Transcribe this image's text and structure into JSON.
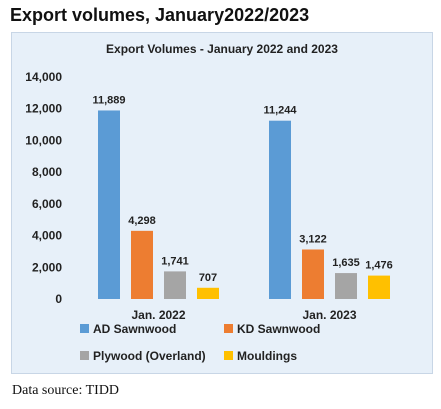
{
  "title": "Export volumes, January2022/2023",
  "source": "Data source: TIDD",
  "chart_data": {
    "type": "bar",
    "title": "Export Volumes  - January 2022 and  2023",
    "categories": [
      "Jan. 2022",
      "Jan. 2023"
    ],
    "series": [
      {
        "name": "AD Sawnwood",
        "values": [
          11889,
          11244
        ],
        "labels": [
          "11,889",
          "11,244"
        ],
        "color": "#5b9bd5"
      },
      {
        "name": "KD Sawnwood",
        "values": [
          4298,
          3122
        ],
        "labels": [
          "4,298",
          "3,122"
        ],
        "color": "#ed7d31"
      },
      {
        "name": "Plywood (Overland)",
        "values": [
          1741,
          1635
        ],
        "labels": [
          "1,741",
          "1,635"
        ],
        "color": "#a5a5a5"
      },
      {
        "name": "Mouldings",
        "values": [
          707,
          1476
        ],
        "labels": [
          "707",
          "1,476"
        ],
        "color": "#ffc000"
      }
    ],
    "ylim": [
      0,
      14000
    ],
    "yticks": [
      0,
      2000,
      4000,
      6000,
      8000,
      10000,
      12000,
      14000
    ],
    "ytick_labels": [
      "0",
      "2,000",
      "4,000",
      "6,000",
      "8,000",
      "10,000",
      "12,000",
      "14,000"
    ],
    "grid": false,
    "legend_position": "bottom"
  }
}
